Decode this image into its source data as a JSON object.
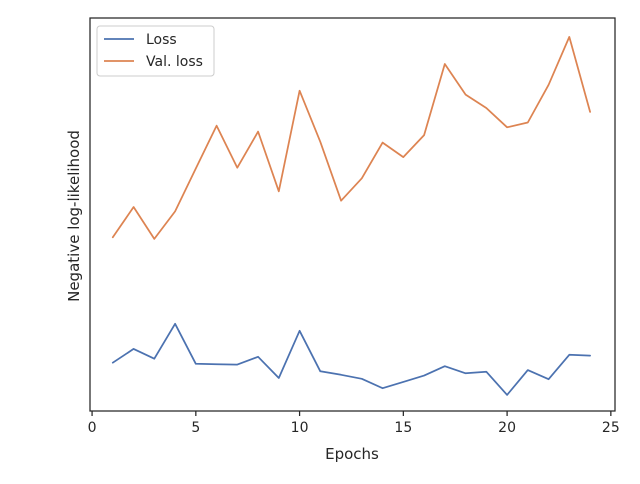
{
  "chart_data": {
    "type": "line",
    "xlabel": "Epochs",
    "ylabel": "Negative log-likelihood",
    "xlim": [
      -0.1,
      25.2
    ],
    "ylim": [
      0,
      1
    ],
    "xticks": [
      0,
      5,
      10,
      15,
      20,
      25
    ],
    "xtick_labels": [
      "0",
      "5",
      "10",
      "15",
      "20",
      "25"
    ],
    "y_tick_labels_shown": false,
    "grid": false,
    "legend_position": "upper-left",
    "x": [
      1,
      2,
      3,
      4,
      5,
      6,
      7,
      8,
      9,
      10,
      11,
      12,
      13,
      14,
      15,
      16,
      17,
      18,
      19,
      20,
      21,
      22,
      23,
      24
    ],
    "series": [
      {
        "name": "Loss",
        "color": "#4c72b0",
        "values": [
          0.123,
          0.158,
          0.133,
          0.222,
          0.12,
          0.119,
          0.118,
          0.138,
          0.084,
          0.204,
          0.101,
          0.092,
          0.082,
          0.058,
          0.074,
          0.09,
          0.114,
          0.096,
          0.1,
          0.041,
          0.104,
          0.081,
          0.143,
          0.141
        ]
      },
      {
        "name": "Val. loss",
        "color": "#dd8452",
        "values": [
          0.442,
          0.519,
          0.438,
          0.508,
          0.617,
          0.726,
          0.619,
          0.711,
          0.559,
          0.815,
          0.685,
          0.535,
          0.592,
          0.683,
          0.646,
          0.702,
          0.883,
          0.805,
          0.771,
          0.722,
          0.734,
          0.83,
          0.952,
          0.761
        ]
      }
    ]
  }
}
